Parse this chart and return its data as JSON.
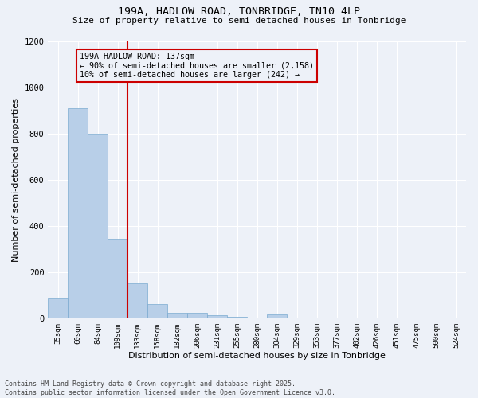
{
  "title1": "199A, HADLOW ROAD, TONBRIDGE, TN10 4LP",
  "title2": "Size of property relative to semi-detached houses in Tonbridge",
  "xlabel": "Distribution of semi-detached houses by size in Tonbridge",
  "ylabel": "Number of semi-detached properties",
  "categories": [
    "35sqm",
    "60sqm",
    "84sqm",
    "109sqm",
    "133sqm",
    "158sqm",
    "182sqm",
    "206sqm",
    "231sqm",
    "255sqm",
    "280sqm",
    "304sqm",
    "329sqm",
    "353sqm",
    "377sqm",
    "402sqm",
    "426sqm",
    "451sqm",
    "475sqm",
    "500sqm",
    "524sqm"
  ],
  "values": [
    85,
    910,
    800,
    345,
    150,
    60,
    25,
    22,
    12,
    8,
    0,
    15,
    0,
    0,
    0,
    0,
    0,
    0,
    0,
    0,
    0
  ],
  "bar_color": "#b8cfe8",
  "bar_edge_color": "#7aaad0",
  "highlight_index": 4,
  "highlight_color": "#cc0000",
  "annotation_title": "199A HADLOW ROAD: 137sqm",
  "annotation_line1": "← 90% of semi-detached houses are smaller (2,158)",
  "annotation_line2": "10% of semi-detached houses are larger (242) →",
  "annotation_box_color": "#cc0000",
  "ylim": [
    0,
    1200
  ],
  "yticks": [
    0,
    200,
    400,
    600,
    800,
    1000,
    1200
  ],
  "footer1": "Contains HM Land Registry data © Crown copyright and database right 2025.",
  "footer2": "Contains public sector information licensed under the Open Government Licence v3.0.",
  "bg_color": "#edf1f8",
  "grid_color": "#ffffff"
}
